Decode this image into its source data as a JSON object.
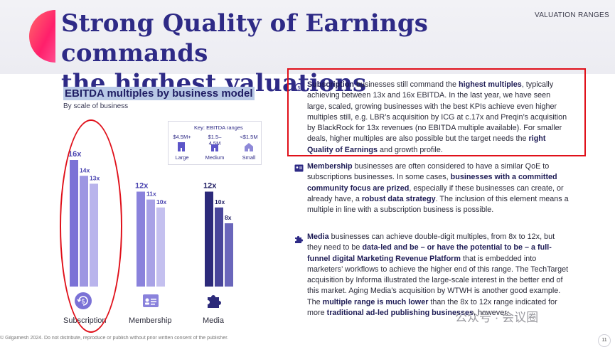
{
  "header": {
    "title_line1": "Strong Quality of Earnings commands",
    "title_line2": "the highest valuations",
    "section_tag": "VALUATION RANGES"
  },
  "chart_data": {
    "type": "bar",
    "title": "EBITDA multiples by business model",
    "subtitle": "By scale of business",
    "categories": [
      "Subscription",
      "Membership",
      "Media"
    ],
    "series": [
      {
        "name": "Large",
        "values": [
          16,
          12,
          12
        ],
        "labels": [
          "16x",
          "12x",
          "12x"
        ]
      },
      {
        "name": "Medium",
        "values": [
          14,
          11,
          10
        ],
        "labels": [
          "14x",
          "11x",
          "10x"
        ]
      },
      {
        "name": "Small",
        "values": [
          13,
          10,
          8
        ],
        "labels": [
          "13x",
          "10x",
          "8x"
        ]
      }
    ],
    "ylim": [
      0,
      16
    ],
    "grid": false,
    "key": {
      "title": "Key: EBITDA ranges",
      "items": [
        {
          "range": "$4.5M+",
          "size": "Large"
        },
        {
          "range": "$1.5–4.5M",
          "size": "Medium"
        },
        {
          "range": "<$1.5M",
          "size": "Small"
        }
      ]
    },
    "colors": {
      "Subscription": [
        "#7b72d6",
        "#9d96e2",
        "#b9b4ec"
      ],
      "Membership": [
        "#8a82dc",
        "#a8a2e6",
        "#c4c0ef"
      ],
      "Media": [
        "#2c2a7a",
        "#48459a",
        "#6a66bb"
      ]
    },
    "category_icons": [
      "subscription-refresh-icon",
      "membership-card-icon",
      "media-puzzle-icon"
    ]
  },
  "paragraphs": {
    "subscription": {
      "icon": "refresh-dollar-icon",
      "segments": [
        {
          "t": "Subscription",
          "b": true
        },
        {
          "t": " businesses still command the ",
          "b": false
        },
        {
          "t": "highest multiples",
          "b": true
        },
        {
          "t": ", typically achieving between 13x and 16x EBITDA. In the last year, we have seen large, scaled, growing businesses with the best KPIs achieve even higher multiples still, e.g. LBR’s acquisition by ICG at c.17x and Preqin’s acquisition by BlackRock for 13x revenues (no EBITDA multiple available). For smaller deals, higher multiples are also possible but the target needs the ",
          "b": false
        },
        {
          "t": "right Quality of Earnings",
          "b": true
        },
        {
          "t": " and growth profile.",
          "b": false
        }
      ]
    },
    "membership": {
      "icon": "membership-card-icon",
      "segments": [
        {
          "t": "Membership",
          "b": true
        },
        {
          "t": " businesses are often considered to have a similar QoE to subscriptions businesses. In some cases, ",
          "b": false
        },
        {
          "t": "businesses with a committed community focus are prized",
          "b": true
        },
        {
          "t": ", especially if these businesses can create, or already have, a ",
          "b": false
        },
        {
          "t": "robust data strategy",
          "b": true
        },
        {
          "t": ". The inclusion of this element means a multiple in line with a subscription business is possible.",
          "b": false
        }
      ]
    },
    "media": {
      "icon": "puzzle-icon",
      "segments": [
        {
          "t": "Media",
          "b": true
        },
        {
          "t": " businesses can achieve double-digit multiples, from 8x to 12x, but they need to be ",
          "b": false
        },
        {
          "t": "data-led and be – or have the potential to be – a full-funnel digital Marketing Revenue Platform",
          "b": true
        },
        {
          "t": " that is embedded into marketers’ workflows to achieve the higher end of this range. The TechTarget acquisition by Informa illustrated the large-scale interest in the better end of this market. Aging Media’s acquisition by WTWH is another good example. The ",
          "b": false
        },
        {
          "t": "multiple range is much lower",
          "b": true
        },
        {
          "t": " than the 8x to 12x range indicated for more ",
          "b": false
        },
        {
          "t": "traditional ad-led publishing businesses",
          "b": true
        },
        {
          "t": ", however.",
          "b": false
        }
      ]
    }
  },
  "footer": {
    "text": "© Gilgamesh 2024. Do not distribute, reproduce or publish without prior written consent of the publisher.",
    "watermark": "公众号 · 会议圈",
    "page": "11"
  }
}
